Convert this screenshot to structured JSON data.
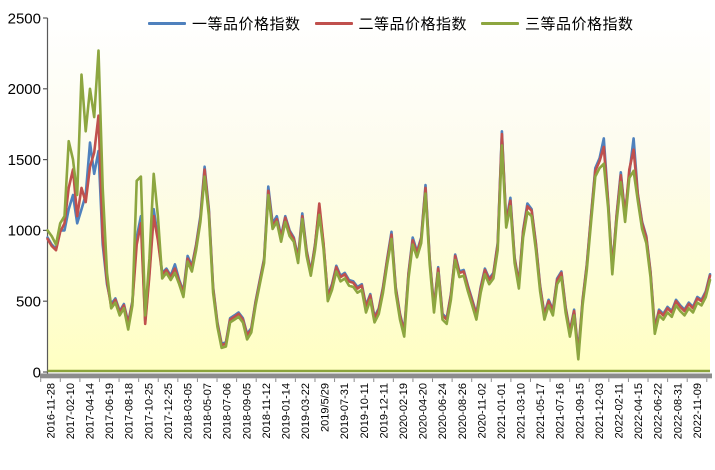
{
  "chart_data": {
    "type": "line",
    "title": "",
    "xlabel": "",
    "ylabel": "",
    "ylim": [
      0,
      2500
    ],
    "y_ticks": [
      0,
      500,
      1000,
      1500,
      2000,
      2500
    ],
    "grid": false,
    "legend_position": "top",
    "x_tick_labels": [
      "2016-11-28",
      "2017-02-10",
      "2017-04-14",
      "2017-06-19",
      "2017-08-18",
      "2017-10-25",
      "2017-12-25",
      "2018-03-05",
      "2018-05-07",
      "2018-07-06",
      "2018-09-05",
      "2018-11-12",
      "2019-01-14",
      "2019-03-22",
      "2019/5/29",
      "2019-07-31",
      "2019-10-11",
      "2019-12-11",
      "2020-02-19",
      "2020-04-20",
      "2020-06-24",
      "2020-08-26",
      "2020-11-02",
      "2021-01-01",
      "2021-03-10",
      "2021-05-17",
      "2021-07-16",
      "2021-09-15",
      "2021-12-03",
      "2022-02-11",
      "2022-04-15",
      "2022-06-22",
      "2022-08-31",
      "2022-11-09"
    ],
    "n_points": 157,
    "colors": {
      "plot_bg_top": "#ffffff",
      "plot_bg_mid": "#fdfcee",
      "plot_bg_bottom": "#ffffc2",
      "y_axis_line": "#595959",
      "x_base_bar": "#8c8c8c",
      "x_base_line": "#8ca43c",
      "tick_text": "#000000"
    },
    "series": [
      {
        "name": "一等品价格指数",
        "color": "#4F81BD",
        "values": [
          950,
          900,
          870,
          1000,
          1000,
          1150,
          1250,
          1050,
          1150,
          1250,
          1620,
          1400,
          1560,
          900,
          620,
          480,
          520,
          430,
          480,
          350,
          500,
          950,
          1100,
          360,
          700,
          1150,
          950,
          700,
          730,
          680,
          760,
          650,
          570,
          820,
          750,
          900,
          1100,
          1450,
          1150,
          600,
          350,
          200,
          210,
          380,
          400,
          420,
          380,
          270,
          310,
          500,
          650,
          800,
          1310,
          1050,
          1100,
          960,
          1100,
          1000,
          950,
          810,
          1120,
          860,
          710,
          900,
          1160,
          900,
          540,
          620,
          750,
          680,
          700,
          650,
          640,
          600,
          620,
          470,
          550,
          390,
          450,
          600,
          800,
          990,
          600,
          410,
          290,
          700,
          950,
          850,
          950,
          1320,
          800,
          460,
          740,
          410,
          380,
          550,
          830,
          710,
          720,
          610,
          510,
          410,
          600,
          730,
          660,
          700,
          910,
          1700,
          1060,
          1230,
          810,
          630,
          1000,
          1190,
          1150,
          910,
          610,
          410,
          510,
          440,
          660,
          710,
          460,
          290,
          440,
          140,
          510,
          760,
          1110,
          1440,
          1510,
          1650,
          1210,
          730,
          1110,
          1410,
          1110,
          1400,
          1650,
          1260,
          1060,
          960,
          710,
          310,
          440,
          410,
          460,
          430,
          510,
          470,
          440,
          490,
          460,
          530,
          510,
          570,
          690
        ]
      },
      {
        "name": "二等品价格指数",
        "color": "#C0504D",
        "values": [
          940,
          890,
          860,
          990,
          1050,
          1300,
          1430,
          1100,
          1300,
          1200,
          1450,
          1550,
          1810,
          950,
          640,
          460,
          510,
          420,
          470,
          340,
          490,
          900,
          1050,
          340,
          680,
          1100,
          930,
          690,
          720,
          670,
          730,
          640,
          560,
          800,
          740,
          890,
          1080,
          1430,
          1130,
          590,
          340,
          190,
          200,
          370,
          390,
          410,
          370,
          260,
          300,
          490,
          640,
          790,
          1280,
          1030,
          1080,
          950,
          1090,
          990,
          940,
          800,
          1100,
          850,
          700,
          890,
          1190,
          910,
          530,
          610,
          740,
          670,
          690,
          640,
          630,
          590,
          610,
          460,
          540,
          380,
          440,
          590,
          790,
          970,
          590,
          400,
          280,
          690,
          930,
          840,
          940,
          1300,
          790,
          450,
          730,
          400,
          370,
          540,
          820,
          700,
          710,
          600,
          500,
          400,
          590,
          720,
          650,
          690,
          900,
          1680,
          1050,
          1210,
          800,
          620,
          990,
          1170,
          1140,
          900,
          600,
          400,
          500,
          430,
          650,
          700,
          450,
          280,
          430,
          120,
          500,
          750,
          1100,
          1420,
          1490,
          1590,
          1200,
          720,
          1100,
          1390,
          1100,
          1430,
          1570,
          1250,
          1050,
          950,
          700,
          300,
          430,
          400,
          450,
          420,
          500,
          460,
          430,
          480,
          450,
          520,
          500,
          560,
          680
        ]
      },
      {
        "name": "三等品价格指数",
        "color": "#8DA640",
        "values": [
          1000,
          960,
          900,
          1050,
          1100,
          1630,
          1500,
          1250,
          2100,
          1700,
          2000,
          1800,
          2270,
          1300,
          700,
          450,
          490,
          400,
          450,
          300,
          470,
          1350,
          1380,
          400,
          800,
          1400,
          1100,
          660,
          700,
          650,
          700,
          620,
          530,
          780,
          710,
          860,
          1060,
          1380,
          1100,
          560,
          320,
          170,
          180,
          350,
          370,
          390,
          350,
          230,
          280,
          470,
          620,
          770,
          1250,
          1010,
          1060,
          920,
          1060,
          960,
          920,
          770,
          1080,
          820,
          680,
          860,
          1110,
          870,
          500,
          580,
          710,
          640,
          660,
          610,
          600,
          560,
          580,
          420,
          510,
          350,
          410,
          560,
          760,
          940,
          560,
          370,
          250,
          660,
          900,
          810,
          910,
          1260,
          760,
          420,
          700,
          370,
          340,
          510,
          790,
          670,
          680,
          570,
          470,
          370,
          560,
          690,
          620,
          660,
          860,
          1600,
          1020,
          1170,
          770,
          590,
          950,
          1130,
          1100,
          860,
          570,
          370,
          470,
          400,
          620,
          670,
          420,
          250,
          400,
          90,
          470,
          720,
          1060,
          1380,
          1440,
          1470,
          1160,
          690,
          1060,
          1340,
          1060,
          1370,
          1420,
          1210,
          1010,
          910,
          670,
          270,
          400,
          370,
          420,
          390,
          470,
          430,
          400,
          450,
          420,
          490,
          470,
          530,
          650
        ]
      }
    ]
  }
}
